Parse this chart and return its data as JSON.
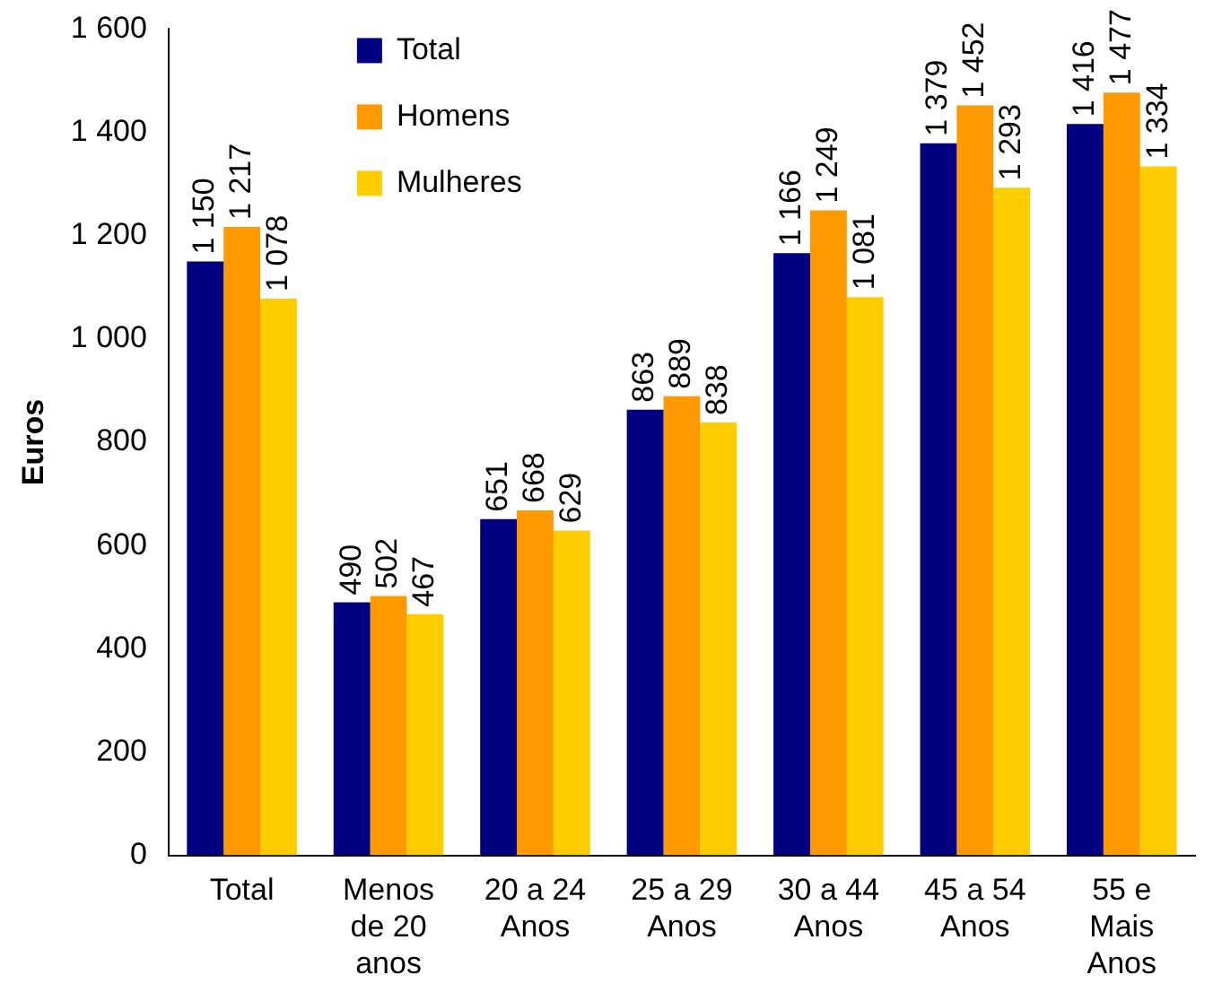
{
  "chart_data": {
    "type": "bar",
    "ylabel": "Euros",
    "categories": [
      "Total",
      "Menos de 20 anos",
      "20 a 24 Anos",
      "25 a 29 Anos",
      "30 a 44 Anos",
      "45 a 54 Anos",
      "55 e Mais Anos"
    ],
    "series": [
      {
        "name": "Total",
        "color": "#000080",
        "values": [
          1150,
          490,
          651,
          863,
          1166,
          1379,
          1416
        ],
        "value_labels": [
          "1 150",
          "490",
          "651",
          "863",
          "1 166",
          "1 379",
          "1 416"
        ]
      },
      {
        "name": "Homens",
        "color": "#ff9900",
        "values": [
          1217,
          502,
          668,
          889,
          1249,
          1452,
          1477
        ],
        "value_labels": [
          "1 217",
          "502",
          "668",
          "889",
          "1 249",
          "1 452",
          "1 477"
        ]
      },
      {
        "name": "Mulheres",
        "color": "#ffcc00",
        "values": [
          1078,
          467,
          629,
          838,
          1081,
          1293,
          1334
        ],
        "value_labels": [
          "1 078",
          "467",
          "629",
          "838",
          "1 081",
          "1 293",
          "1 334"
        ]
      }
    ],
    "ylim": [
      0,
      1600
    ],
    "yticks": [
      {
        "value": 0,
        "label": "0"
      },
      {
        "value": 200,
        "label": "200"
      },
      {
        "value": 400,
        "label": "400"
      },
      {
        "value": 600,
        "label": "600"
      },
      {
        "value": 800,
        "label": "800"
      },
      {
        "value": 1000,
        "label": "1 000"
      },
      {
        "value": 1200,
        "label": "1 200"
      },
      {
        "value": 1400,
        "label": "1 400"
      },
      {
        "value": 1600,
        "label": "1 600"
      }
    ],
    "grid": false,
    "legend": "top left"
  }
}
